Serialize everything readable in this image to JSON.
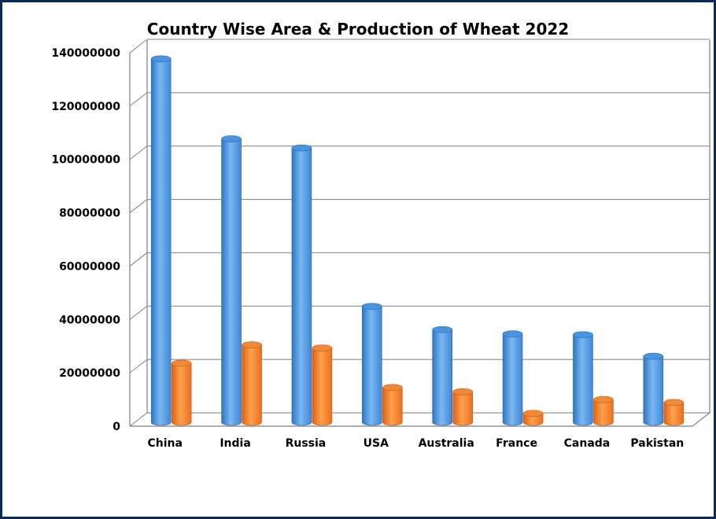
{
  "chart_data": {
    "type": "bar",
    "title": "Country Wise Area & Production of Wheat 2022",
    "xlabel": "",
    "ylabel": "",
    "categories": [
      "China",
      "India",
      "Russia",
      "USA",
      "Australia",
      "France",
      "Canada",
      "Pakistan"
    ],
    "series": [
      {
        "values": [
          137700000,
          107700000,
          104300000,
          44900000,
          36200000,
          34600000,
          34300000,
          26200000
        ]
      },
      {
        "values": [
          23600000,
          30500000,
          29300000,
          14500000,
          12900000,
          4800000,
          10000000,
          8900000
        ]
      }
    ],
    "ylim": [
      0,
      140000000
    ],
    "yticks": [
      "0",
      "20000000",
      "40000000",
      "60000000",
      "80000000",
      "100000000",
      "120000000",
      "140000000"
    ],
    "grid": true,
    "legend": "none",
    "colors": {
      "series1": "#5aa6ea",
      "series2": "#f7842a",
      "frame": "#0b2a5c",
      "grid": "#7f7f7f"
    }
  }
}
